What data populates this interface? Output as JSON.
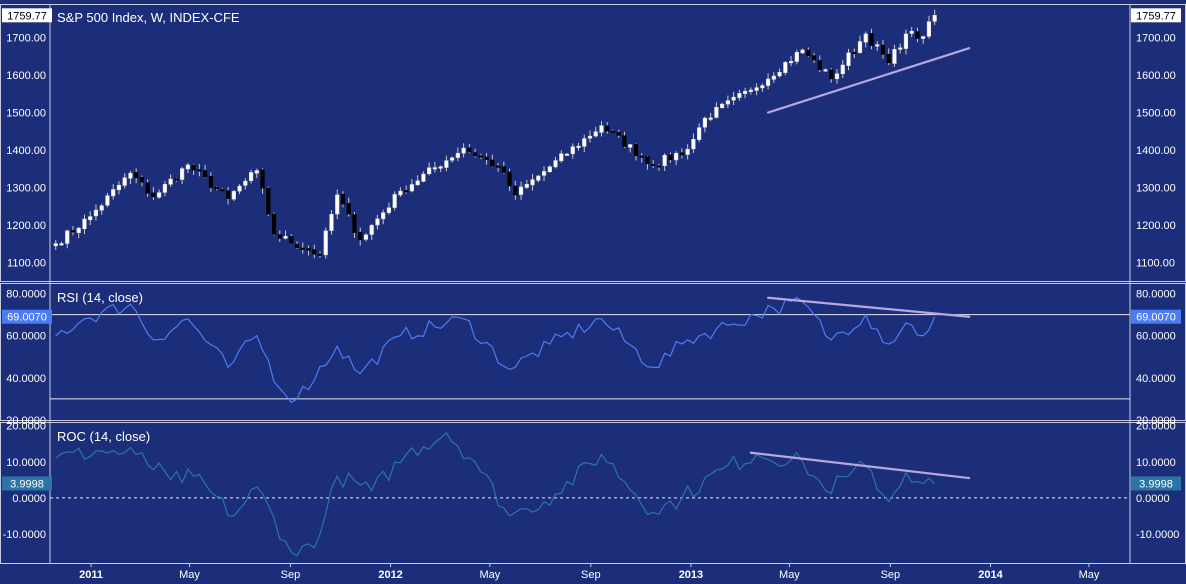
{
  "colors": {
    "background": "#1c2e7a",
    "border": "#c8cbe0",
    "candle_up": "#ffffff",
    "candle_down": "#000000",
    "wick": "#c8c8c8",
    "rsi_line": "#4c7cf2",
    "roc_line": "#2a74a6",
    "trendline": "#b6a7de",
    "badge_price_bg": "#ffffff",
    "badge_price_text": "#000000",
    "badge_rsi_bg": "#4c7cf2",
    "badge_roc_bg": "#2a74a6",
    "badge_text_light": "#ffffff"
  },
  "chart_data": [
    {
      "type": "candlestick",
      "title": "S&P 500 Index, W, INDEX-CFE",
      "timeframe": "weekly",
      "x_range": [
        "2010-11-12",
        "2014-06-20"
      ],
      "y_range": [
        1050,
        1790
      ],
      "y_ticks": [
        "1100.00",
        "1200.00",
        "1300.00",
        "1400.00",
        "1500.00",
        "1600.00",
        "1700.00"
      ],
      "last_value": "1759.77",
      "anchors": [
        {
          "date": "2010-11-19",
          "close": 1150
        },
        {
          "date": "2010-12-31",
          "close": 1222
        },
        {
          "date": "2011-02-18",
          "close": 1338
        },
        {
          "date": "2011-03-18",
          "close": 1275
        },
        {
          "date": "2011-04-29",
          "close": 1360
        },
        {
          "date": "2011-06-17",
          "close": 1270
        },
        {
          "date": "2011-07-22",
          "close": 1345
        },
        {
          "date": "2011-08-12",
          "close": 1175
        },
        {
          "date": "2011-10-07",
          "close": 1120
        },
        {
          "date": "2011-10-28",
          "close": 1280
        },
        {
          "date": "2011-11-25",
          "close": 1160
        },
        {
          "date": "2012-01-13",
          "close": 1290
        },
        {
          "date": "2012-03-30",
          "close": 1405
        },
        {
          "date": "2012-05-11",
          "close": 1355
        },
        {
          "date": "2012-06-01",
          "close": 1280
        },
        {
          "date": "2012-07-13",
          "close": 1355
        },
        {
          "date": "2012-09-14",
          "close": 1465
        },
        {
          "date": "2012-11-16",
          "close": 1360
        },
        {
          "date": "2012-12-28",
          "close": 1402
        },
        {
          "date": "2013-01-18",
          "close": 1485
        },
        {
          "date": "2013-03-15",
          "close": 1560
        },
        {
          "date": "2013-05-17",
          "close": 1667
        },
        {
          "date": "2013-06-21",
          "close": 1590
        },
        {
          "date": "2013-08-02",
          "close": 1710
        },
        {
          "date": "2013-08-30",
          "close": 1633
        },
        {
          "date": "2013-09-20",
          "close": 1710
        },
        {
          "date": "2013-10-11",
          "close": 1703
        },
        {
          "date": "2013-10-25",
          "close": 1759.77
        }
      ]
    },
    {
      "type": "line",
      "title": "RSI (14, close)",
      "y_range": [
        20,
        85
      ],
      "y_ticks": [
        "20.0000",
        "40.0000",
        "60.0000",
        "80.0000"
      ],
      "levels": [
        70,
        30
      ],
      "last_value": "69.0070",
      "anchors": [
        {
          "date": "2010-11-19",
          "value": 60
        },
        {
          "date": "2010-12-24",
          "value": 68
        },
        {
          "date": "2011-02-18",
          "value": 75
        },
        {
          "date": "2011-03-18",
          "value": 58
        },
        {
          "date": "2011-04-29",
          "value": 68
        },
        {
          "date": "2011-06-17",
          "value": 45
        },
        {
          "date": "2011-07-22",
          "value": 60
        },
        {
          "date": "2011-08-19",
          "value": 35
        },
        {
          "date": "2011-09-09",
          "value": 30
        },
        {
          "date": "2011-10-28",
          "value": 55
        },
        {
          "date": "2011-11-25",
          "value": 42
        },
        {
          "date": "2012-01-13",
          "value": 60
        },
        {
          "date": "2012-03-30",
          "value": 68
        },
        {
          "date": "2012-05-25",
          "value": 44
        },
        {
          "date": "2012-07-13",
          "value": 56
        },
        {
          "date": "2012-09-14",
          "value": 68
        },
        {
          "date": "2012-11-16",
          "value": 45
        },
        {
          "date": "2012-12-28",
          "value": 58
        },
        {
          "date": "2013-02-15",
          "value": 65
        },
        {
          "date": "2013-04-12",
          "value": 73
        },
        {
          "date": "2013-05-17",
          "value": 76
        },
        {
          "date": "2013-06-21",
          "value": 58
        },
        {
          "date": "2013-08-02",
          "value": 70
        },
        {
          "date": "2013-08-30",
          "value": 56
        },
        {
          "date": "2013-09-20",
          "value": 66
        },
        {
          "date": "2013-10-11",
          "value": 60
        },
        {
          "date": "2013-10-25",
          "value": 69.007
        }
      ]
    },
    {
      "type": "line",
      "title": "ROC (14, close)",
      "y_range": [
        -18,
        21
      ],
      "y_ticks": [
        "-10.0000",
        "0.0000",
        "10.0000",
        "20.0000"
      ],
      "levels": [
        0
      ],
      "last_value": "3.9998",
      "anchors": [
        {
          "date": "2010-11-19",
          "value": 11
        },
        {
          "date": "2011-01-14",
          "value": 13
        },
        {
          "date": "2011-02-25",
          "value": 12
        },
        {
          "date": "2011-04-08",
          "value": 5
        },
        {
          "date": "2011-05-06",
          "value": 6
        },
        {
          "date": "2011-06-24",
          "value": -5
        },
        {
          "date": "2011-07-22",
          "value": 3
        },
        {
          "date": "2011-08-26",
          "value": -12
        },
        {
          "date": "2011-09-09",
          "value": -16
        },
        {
          "date": "2011-10-07",
          "value": -10
        },
        {
          "date": "2011-10-28",
          "value": 6
        },
        {
          "date": "2011-12-09",
          "value": 2
        },
        {
          "date": "2012-01-20",
          "value": 12
        },
        {
          "date": "2012-03-09",
          "value": 18
        },
        {
          "date": "2012-04-13",
          "value": 10
        },
        {
          "date": "2012-05-25",
          "value": -5
        },
        {
          "date": "2012-06-15",
          "value": -3
        },
        {
          "date": "2012-07-20",
          "value": 1
        },
        {
          "date": "2012-09-14",
          "value": 12
        },
        {
          "date": "2012-11-16",
          "value": -4
        },
        {
          "date": "2012-12-21",
          "value": 0
        },
        {
          "date": "2013-02-08",
          "value": 8
        },
        {
          "date": "2013-03-22",
          "value": 12
        },
        {
          "date": "2013-05-17",
          "value": 10
        },
        {
          "date": "2013-06-14",
          "value": 2
        },
        {
          "date": "2013-07-12",
          "value": 6
        },
        {
          "date": "2013-08-02",
          "value": 9
        },
        {
          "date": "2013-08-30",
          "value": -1
        },
        {
          "date": "2013-09-20",
          "value": 7
        },
        {
          "date": "2013-10-11",
          "value": 4
        },
        {
          "date": "2013-10-25",
          "value": 3.9998
        }
      ]
    }
  ],
  "x_axis": {
    "labels": [
      {
        "text": "2011",
        "date": "2011-01-01",
        "bold": true
      },
      {
        "text": "May",
        "date": "2011-05-01",
        "bold": false
      },
      {
        "text": "Sep",
        "date": "2011-09-01",
        "bold": false
      },
      {
        "text": "2012",
        "date": "2012-01-01",
        "bold": true
      },
      {
        "text": "May",
        "date": "2012-05-01",
        "bold": false
      },
      {
        "text": "Sep",
        "date": "2012-09-01",
        "bold": false
      },
      {
        "text": "2013",
        "date": "2013-01-01",
        "bold": true
      },
      {
        "text": "May",
        "date": "2013-05-01",
        "bold": false
      },
      {
        "text": "Sep",
        "date": "2013-09-01",
        "bold": false
      },
      {
        "text": "2014",
        "date": "2014-01-01",
        "bold": true
      },
      {
        "text": "May",
        "date": "2014-05-01",
        "bold": false
      }
    ]
  },
  "trendlines": [
    {
      "panel": 0,
      "from": {
        "date": "2013-04-05",
        "value": 1500
      },
      "to": {
        "date": "2013-12-06",
        "value": 1672
      }
    },
    {
      "panel": 1,
      "from": {
        "date": "2013-04-05",
        "value": 78
      },
      "to": {
        "date": "2013-12-06",
        "value": 69
      }
    },
    {
      "panel": 2,
      "from": {
        "date": "2013-03-15",
        "value": 12.5
      },
      "to": {
        "date": "2013-12-06",
        "value": 5.5
      }
    }
  ]
}
